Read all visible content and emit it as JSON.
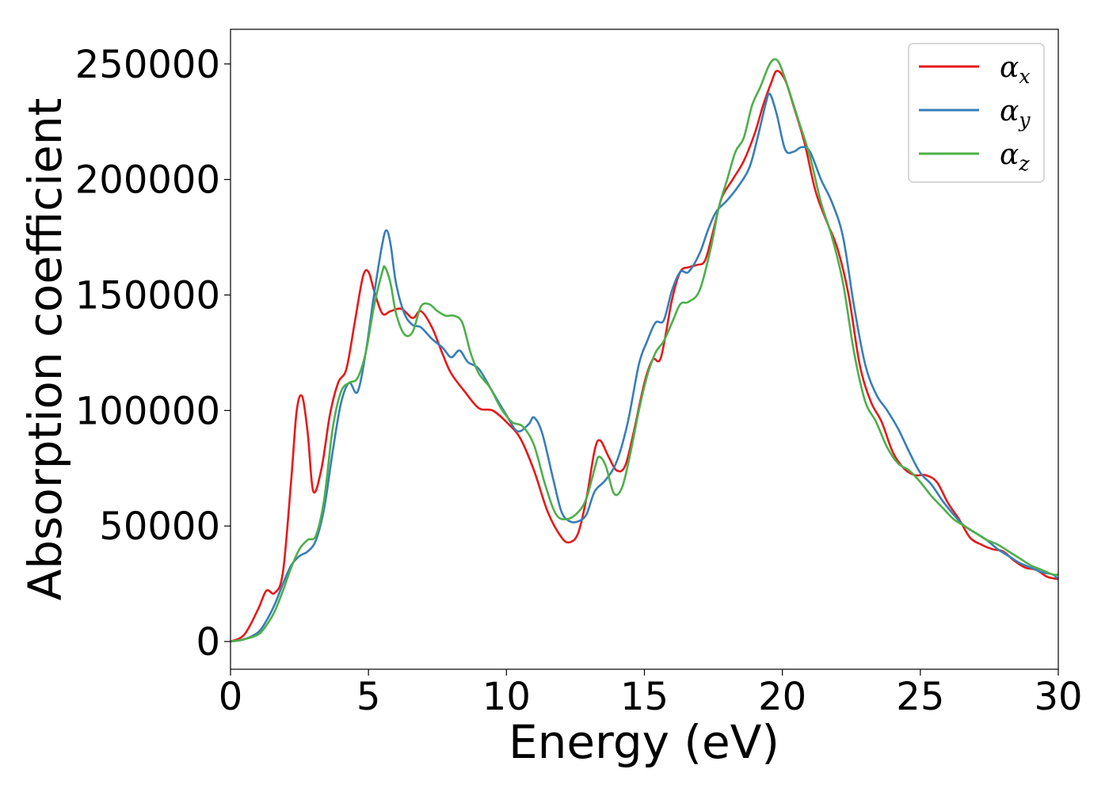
{
  "chart_data": {
    "type": "line",
    "title": "",
    "xlabel": "Energy (eV)",
    "ylabel": "Absorption coefficient",
    "xlim": [
      0,
      30
    ],
    "ylim": [
      -12000,
      265000
    ],
    "xticks": [
      0,
      5,
      10,
      15,
      20,
      25,
      30
    ],
    "yticks": [
      0,
      50000,
      100000,
      150000,
      200000,
      250000
    ],
    "grid": false,
    "legend_position": "top-right",
    "series": [
      {
        "name": "α_x",
        "legend_base": "α",
        "legend_sub": "x",
        "color": "#e41a1c",
        "x": [
          0,
          0.5,
          1.0,
          1.3,
          1.6,
          1.9,
          2.2,
          2.4,
          2.6,
          2.8,
          3.0,
          3.3,
          3.6,
          3.9,
          4.2,
          4.5,
          4.8,
          5.0,
          5.2,
          5.5,
          5.8,
          6.2,
          6.6,
          6.9,
          7.3,
          7.7,
          8.0,
          8.5,
          9.0,
          9.5,
          10.0,
          10.5,
          11.0,
          11.5,
          12.0,
          12.3,
          12.6,
          12.9,
          13.2,
          13.4,
          13.7,
          14.0,
          14.3,
          14.6,
          15.0,
          15.3,
          15.6,
          16.0,
          16.3,
          16.6,
          16.9,
          17.2,
          17.5,
          17.8,
          18.2,
          18.6,
          19.0,
          19.3,
          19.6,
          19.8,
          20.1,
          20.4,
          20.8,
          21.2,
          21.6,
          22.0,
          22.4,
          22.8,
          23.2,
          23.6,
          24.0,
          24.4,
          24.8,
          25.2,
          25.6,
          26.0,
          26.4,
          26.8,
          27.2,
          27.6,
          28.0,
          28.4,
          28.8,
          29.2,
          29.6,
          30.0
        ],
        "y": [
          0,
          3000,
          14000,
          22000,
          21000,
          30000,
          70000,
          100000,
          106000,
          90000,
          65000,
          75000,
          98000,
          112000,
          118000,
          138000,
          158000,
          160000,
          152000,
          142000,
          143000,
          144000,
          140000,
          143000,
          136000,
          124000,
          116000,
          108000,
          101000,
          100000,
          95000,
          88000,
          74000,
          56000,
          45000,
          43000,
          47000,
          62000,
          83000,
          87000,
          80000,
          74000,
          76000,
          90000,
          112000,
          122000,
          123000,
          148000,
          160000,
          162000,
          163000,
          165000,
          178000,
          192000,
          200000,
          208000,
          220000,
          232000,
          242000,
          247000,
          243000,
          232000,
          216000,
          195000,
          182000,
          170000,
          150000,
          120000,
          104000,
          95000,
          82000,
          75000,
          72000,
          72000,
          69000,
          60000,
          53000,
          45000,
          42000,
          40000,
          39000,
          35000,
          32000,
          31000,
          28000,
          27000
        ]
      },
      {
        "name": "α_y",
        "legend_base": "α",
        "legend_sub": "y",
        "color": "#377eb8",
        "x": [
          0,
          0.5,
          1.0,
          1.3,
          1.6,
          1.9,
          2.2,
          2.5,
          2.8,
          3.1,
          3.4,
          3.7,
          4.0,
          4.3,
          4.6,
          4.9,
          5.2,
          5.5,
          5.65,
          5.8,
          6.0,
          6.3,
          6.6,
          6.9,
          7.3,
          7.7,
          8.0,
          8.3,
          8.6,
          9.0,
          9.5,
          10.0,
          10.4,
          10.8,
          11.0,
          11.3,
          11.7,
          12.0,
          12.3,
          12.6,
          12.9,
          13.2,
          13.6,
          14.0,
          14.4,
          14.8,
          15.1,
          15.4,
          15.7,
          16.0,
          16.3,
          16.6,
          17.0,
          17.3,
          17.6,
          18.0,
          18.4,
          18.8,
          19.1,
          19.4,
          19.55,
          19.8,
          20.1,
          20.4,
          20.7,
          21.0,
          21.4,
          21.8,
          22.2,
          22.6,
          23.0,
          23.4,
          23.8,
          24.2,
          24.6,
          25.0,
          25.4,
          25.8,
          26.2,
          26.6,
          27.0,
          27.4,
          27.8,
          28.2,
          28.6,
          29.0,
          29.4,
          29.8,
          30.0
        ],
        "y": [
          0,
          1000,
          4000,
          9000,
          16000,
          25000,
          33000,
          37000,
          39000,
          44000,
          58000,
          82000,
          103000,
          112000,
          108000,
          125000,
          150000,
          172000,
          178000,
          172000,
          155000,
          142000,
          137000,
          136000,
          131000,
          127000,
          123000,
          126000,
          121000,
          118000,
          108000,
          98000,
          91000,
          94000,
          97000,
          90000,
          70000,
          56000,
          52000,
          52000,
          55000,
          65000,
          70000,
          78000,
          95000,
          120000,
          130000,
          138000,
          139000,
          152000,
          160000,
          160000,
          168000,
          178000,
          186000,
          191000,
          197000,
          205000,
          218000,
          233000,
          237000,
          228000,
          213000,
          212000,
          214000,
          212000,
          200000,
          190000,
          175000,
          145000,
          120000,
          107000,
          100000,
          92000,
          82000,
          73000,
          68000,
          61000,
          55000,
          50000,
          47000,
          44000,
          40000,
          37000,
          34000,
          32000,
          30000,
          29000,
          27000
        ]
      },
      {
        "name": "α_z",
        "legend_base": "α",
        "legend_sub": "z",
        "color": "#4daf4a",
        "x": [
          0,
          0.5,
          1.0,
          1.3,
          1.6,
          1.9,
          2.2,
          2.5,
          2.8,
          3.1,
          3.4,
          3.7,
          4.0,
          4.3,
          4.6,
          4.9,
          5.2,
          5.5,
          5.6,
          5.8,
          6.0,
          6.3,
          6.6,
          6.9,
          7.2,
          7.5,
          7.8,
          8.1,
          8.4,
          8.7,
          9.0,
          9.4,
          9.8,
          10.2,
          10.6,
          11.0,
          11.4,
          11.8,
          12.2,
          12.6,
          12.9,
          13.2,
          13.35,
          13.6,
          13.9,
          14.2,
          14.5,
          14.8,
          15.1,
          15.4,
          15.7,
          16.0,
          16.3,
          16.6,
          17.0,
          17.4,
          17.7,
          18.0,
          18.3,
          18.6,
          18.9,
          19.2,
          19.5,
          19.7,
          19.9,
          20.2,
          20.6,
          21.0,
          21.4,
          21.8,
          22.2,
          22.6,
          23.0,
          23.4,
          23.8,
          24.2,
          24.6,
          25.0,
          25.4,
          25.8,
          26.2,
          26.6,
          27.0,
          27.4,
          27.8,
          28.2,
          28.6,
          29.0,
          29.4,
          29.8,
          30.0
        ],
        "y": [
          0,
          1000,
          3000,
          7000,
          13000,
          22000,
          32000,
          40000,
          44000,
          46000,
          62000,
          92000,
          108000,
          112000,
          114000,
          125000,
          145000,
          160000,
          162000,
          155000,
          142000,
          133000,
          134000,
          145000,
          146000,
          143000,
          141000,
          141000,
          138000,
          125000,
          116000,
          110000,
          101000,
          95000,
          93000,
          85000,
          68000,
          55000,
          53000,
          56000,
          62000,
          75000,
          80000,
          76000,
          64000,
          67000,
          82000,
          100000,
          115000,
          125000,
          130000,
          138000,
          146000,
          147000,
          152000,
          170000,
          188000,
          200000,
          212000,
          218000,
          232000,
          240000,
          249000,
          252000,
          250000,
          240000,
          225000,
          210000,
          190000,
          175000,
          155000,
          125000,
          104000,
          95000,
          84000,
          77000,
          74000,
          69000,
          63000,
          58000,
          53000,
          50000,
          47000,
          44000,
          42000,
          39000,
          36000,
          33000,
          31000,
          29000,
          29000
        ]
      }
    ]
  }
}
